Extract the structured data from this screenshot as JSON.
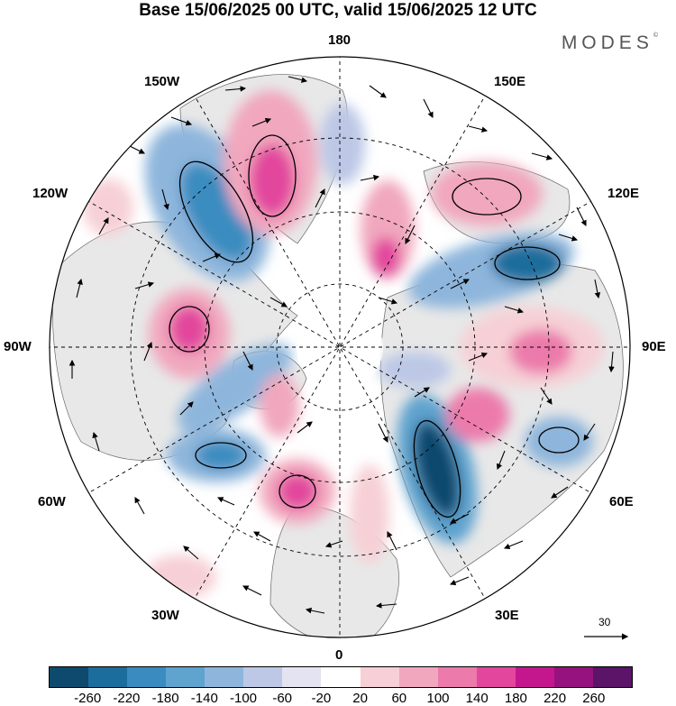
{
  "title": "Base 15/06/2025 00 UTC, valid 15/06/2025 12 UTC",
  "brand": "MODES",
  "brand_mark": "©",
  "longitude_labels": {
    "lon_180": "180",
    "lon_150w": "150W",
    "lon_150e": "150E",
    "lon_120w": "120W",
    "lon_120e": "120E",
    "lon_90w": "90W",
    "lon_90e": "90E",
    "lon_60w": "60W",
    "lon_60e": "60E",
    "lon_30w": "30W",
    "lon_30e": "30E",
    "lon_0": "0"
  },
  "reference_vector": {
    "value": "30",
    "icon": "arrow-right-icon"
  },
  "colorbar": {
    "colors": [
      "#0d4a6e",
      "#1b6d9c",
      "#3a8cc0",
      "#5fa3cf",
      "#8eb6dc",
      "#bcc8e6",
      "#e3e3f1",
      "#ffffff",
      "#f6d0d6",
      "#f1a7be",
      "#ec7aab",
      "#e2479d",
      "#c4178d",
      "#96137e",
      "#5a1468"
    ],
    "ticks": [
      "-260",
      "-220",
      "-180",
      "-140",
      "-100",
      "-60",
      "-20",
      "20",
      "60",
      "100",
      "140",
      "180",
      "220",
      "260"
    ]
  },
  "colors": {
    "land": "#e8e8e8",
    "strong_negative": "#1b6d9c",
    "strong_positive": "#e2479d"
  }
}
